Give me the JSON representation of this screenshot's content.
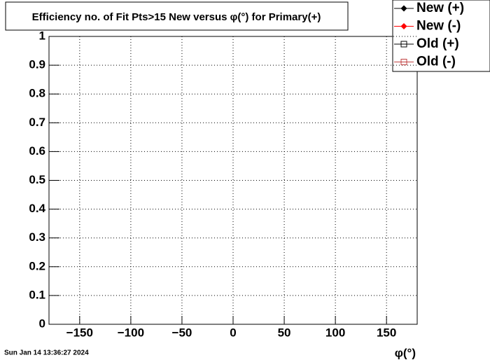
{
  "chart_data": {
    "type": "scatter",
    "title": "Efficiency no. of Fit Pts>15 New versus φ(°) for Primary(+)",
    "x_label": "φ(°)",
    "timestamp": "Sun Jan 14 13:36:27 2024",
    "series": [
      {
        "name": "New (+)",
        "color": "#000000",
        "marker": "filled",
        "x": [],
        "values": []
      },
      {
        "name": "New (-)",
        "color": "#ff0000",
        "marker": "filled",
        "x": [],
        "values": []
      },
      {
        "name": "Old (+)",
        "color": "#000000",
        "marker": "open",
        "x": [],
        "values": []
      },
      {
        "name": "Old (-)",
        "color": "#c04040",
        "marker": "open",
        "x": [],
        "values": []
      }
    ],
    "xlim": [
      -180,
      180
    ],
    "xticks": [
      {
        "value": -150,
        "label": "−150"
      },
      {
        "value": -100,
        "label": "−100"
      },
      {
        "value": -50,
        "label": "−50"
      },
      0,
      50,
      100,
      150
    ],
    "ylim": [
      0,
      1
    ],
    "yticks": [
      0,
      0.1,
      0.2,
      0.3,
      0.4,
      0.5,
      0.6,
      0.7,
      0.8,
      0.9,
      1
    ],
    "grid": true,
    "legend": "top-right"
  }
}
